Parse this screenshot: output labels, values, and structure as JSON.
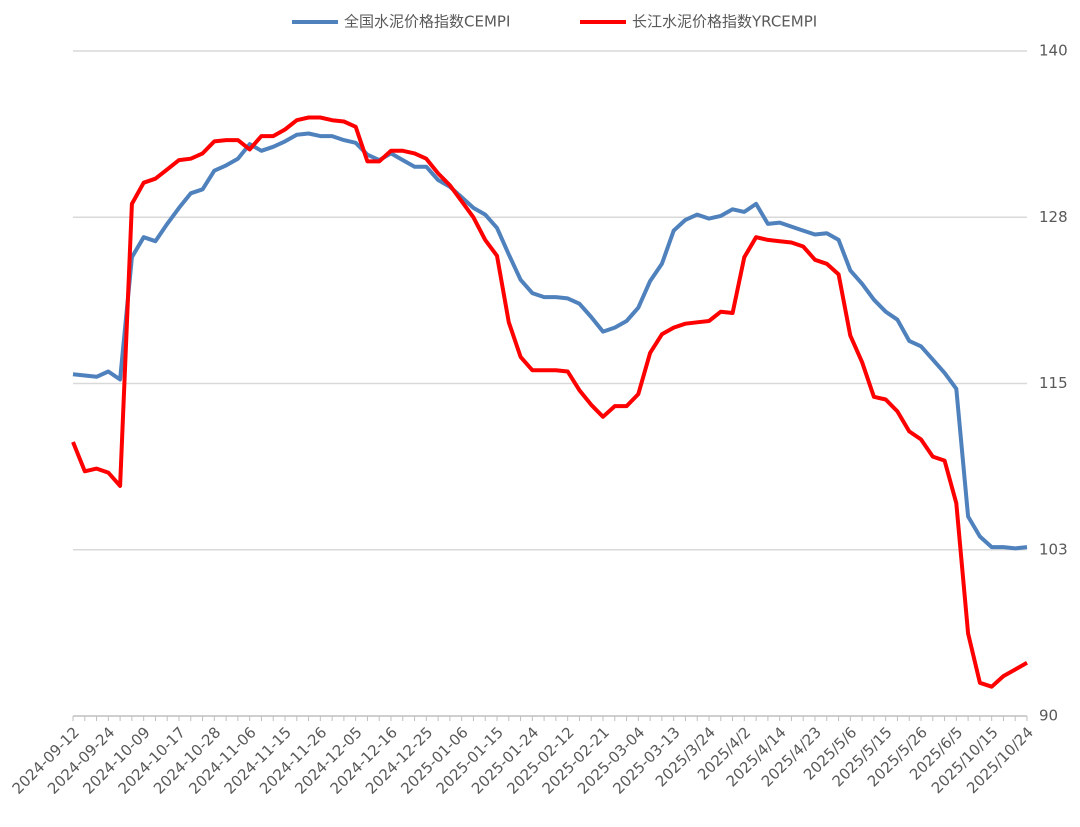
{
  "chart_data": {
    "type": "line",
    "legend": "top",
    "yaxis_side": "right",
    "grid": true,
    "ylim": [
      90,
      140
    ],
    "yticks": [
      90,
      {
        "value": 102.5,
        "label": "103"
      },
      115,
      {
        "value": 127.5,
        "label": "128"
      },
      140
    ],
    "categories": [
      "2024-09-12",
      null,
      null,
      "2024-09-24",
      null,
      null,
      "2024-10-09",
      null,
      null,
      "2024-10-17",
      null,
      null,
      "2024-10-28",
      null,
      null,
      "2024-11-06",
      null,
      null,
      "2024-11-15",
      null,
      null,
      "2024-11-26",
      null,
      null,
      "2024-12-05",
      null,
      null,
      "2024-12-16",
      null,
      null,
      "2024-12-25",
      null,
      null,
      "2025-01-06",
      null,
      null,
      "2025-01-15",
      null,
      null,
      "2025-01-24",
      null,
      null,
      "2025-02-12",
      null,
      null,
      "2025-02-21",
      null,
      null,
      "2025-03-04",
      null,
      null,
      "2025-03-13",
      null,
      null,
      "2025/3/24",
      null,
      null,
      "2025/4/2",
      null,
      null,
      "2025/4/14",
      null,
      null,
      "2025/4/23",
      null,
      null,
      "2025/5/6",
      null,
      null,
      "2025/5/15",
      null,
      null,
      "2025/5/26",
      null,
      null,
      "2025/6/5",
      null,
      null,
      "2025/10/15",
      null,
      null,
      "2025/10/24"
    ],
    "series": [
      {
        "name": "全国水泥价格指数CEMPI",
        "color": "#4f81bd",
        "values": [
          115.7,
          115.6,
          115.5,
          115.9,
          115.3,
          124.5,
          126,
          125.7,
          127,
          128.2,
          129.3,
          129.6,
          131,
          131.4,
          131.9,
          133,
          132.5,
          132.8,
          133.2,
          133.7,
          133.8,
          133.6,
          133.6,
          133.3,
          133.1,
          132.2,
          131.8,
          132.3,
          131.8,
          131.3,
          131.3,
          130.3,
          129.8,
          129,
          128.2,
          127.7,
          126.7,
          124.7,
          122.8,
          121.8,
          121.5,
          121.5,
          121.4,
          121,
          120,
          118.9,
          119.2,
          119.7,
          120.7,
          122.7,
          124,
          126.5,
          127.3,
          127.7,
          127.4,
          127.6,
          128.1,
          127.9,
          128.5,
          127,
          127.1,
          126.8,
          126.5,
          126.2,
          126.3,
          125.8,
          123.5,
          122.5,
          121.3,
          120.4,
          119.8,
          118.2,
          117.8,
          116.8,
          115.8,
          114.6,
          105,
          103.5,
          102.7,
          102.7,
          102.6,
          102.7
        ]
      },
      {
        "name": "长江水泥价格指数YRCEMPI",
        "color": "#ff0000",
        "values": [
          110.6,
          108.4,
          108.6,
          108.3,
          107.3,
          128.5,
          130.1,
          130.4,
          131.1,
          131.8,
          131.9,
          132.3,
          133.2,
          133.3,
          133.3,
          132.6,
          133.6,
          133.6,
          134.1,
          134.8,
          135,
          135,
          134.8,
          134.7,
          134.3,
          131.7,
          131.7,
          132.5,
          132.5,
          132.3,
          131.9,
          130.8,
          129.9,
          128.7,
          127.5,
          125.8,
          124.6,
          119.6,
          117,
          116,
          116,
          116,
          115.9,
          114.5,
          113.4,
          112.5,
          113.3,
          113.3,
          114.2,
          117.3,
          118.7,
          119.2,
          119.5,
          119.6,
          119.7,
          120.4,
          120.3,
          124.5,
          126,
          125.8,
          125.7,
          125.6,
          125.3,
          124.3,
          124,
          123.2,
          118.6,
          116.6,
          114,
          113.8,
          112.9,
          111.4,
          110.8,
          109.5,
          109.2,
          106,
          96.2,
          92.5,
          92.2,
          93,
          93.5,
          94
        ]
      }
    ]
  }
}
